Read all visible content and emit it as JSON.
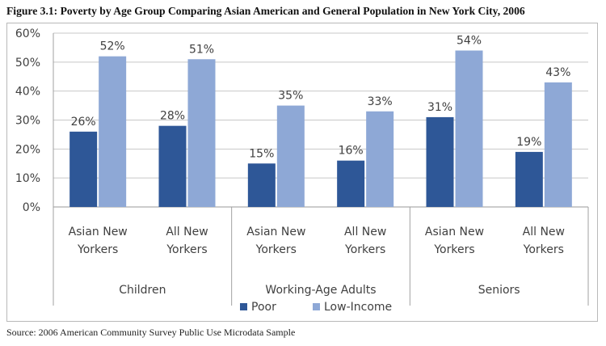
{
  "figure": {
    "title": "Figure 3.1: Poverty by Age Group Comparing Asian American and General Population in New York City, 2006",
    "source": "Source: 2006 American Community Survey Public Use Microdata Sample"
  },
  "chart_data": {
    "type": "bar",
    "title": "",
    "xlabel": "",
    "ylabel": "",
    "ylim": [
      0,
      60
    ],
    "yticks": [
      "0%",
      "10%",
      "20%",
      "30%",
      "40%",
      "50%",
      "60%"
    ],
    "grid": true,
    "legend_position": "bottom",
    "groups": [
      "Children",
      "Working-Age Adults",
      "Seniors"
    ],
    "subcategories": [
      [
        "Asian New",
        "Yorkers"
      ],
      [
        "All New",
        "Yorkers"
      ]
    ],
    "categories": [
      "Children / Asian New Yorkers",
      "Children / All New Yorkers",
      "Working-Age Adults / Asian New Yorkers",
      "Working-Age Adults / All New Yorkers",
      "Seniors / Asian New Yorkers",
      "Seniors / All New Yorkers"
    ],
    "series": [
      {
        "name": "Poor",
        "color": "#2e5797",
        "values": [
          26,
          28,
          15,
          16,
          31,
          19
        ],
        "labels": [
          "26%",
          "28%",
          "15%",
          "16%",
          "31%",
          "19%"
        ]
      },
      {
        "name": "Low-Income",
        "color": "#8ea8d6",
        "values": [
          52,
          51,
          35,
          33,
          54,
          43
        ],
        "labels": [
          "52%",
          "51%",
          "35%",
          "33%",
          "54%",
          "43%"
        ]
      }
    ]
  }
}
